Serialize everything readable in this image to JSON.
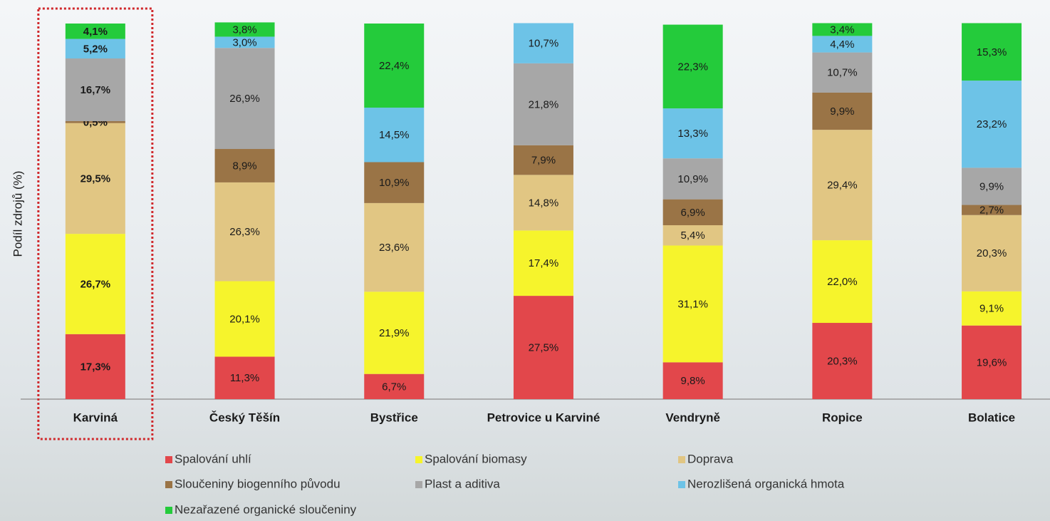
{
  "chart_data": {
    "type": "stacked_bar",
    "y_label": "Podíl zdrojů (%)",
    "categories": [
      "Karviná",
      "Český Těšín",
      "Bystřice",
      "Petrovice u Karviné",
      "Vendryně",
      "Ropice",
      "Bolatice"
    ],
    "ylim": [
      0,
      100
    ],
    "highlighted_category": 0,
    "series": [
      {
        "name": "Spalování uhlí",
        "color": "#e2474b",
        "values": [
          17.3,
          11.3,
          6.7,
          27.5,
          9.8,
          20.3,
          19.6
        ],
        "value_labels": [
          "17,3%",
          "11,3%",
          "6,7%",
          "27,5%",
          "9,8%",
          "20,3%",
          "19,6%"
        ]
      },
      {
        "name": "Spalování biomasy",
        "color": "#f6f42c",
        "values": [
          26.7,
          20.1,
          21.9,
          17.4,
          31.1,
          22.0,
          9.1
        ],
        "value_labels": [
          "26,7%",
          "20,1%",
          "21,9%",
          "17,4%",
          "31,1%",
          "22,0%",
          "9,1%"
        ]
      },
      {
        "name": "Doprava",
        "color": "#e1c683",
        "values": [
          29.5,
          26.3,
          23.6,
          14.8,
          5.4,
          29.4,
          20.3
        ],
        "value_labels": [
          "29,5%",
          "26,3%",
          "23,6%",
          "14,8%",
          "5,4%",
          "29,4%",
          "20,3%"
        ]
      },
      {
        "name": "Sloučeniny biogenního původu",
        "color": "#9a7446",
        "values": [
          0.5,
          8.9,
          10.9,
          7.9,
          6.9,
          9.9,
          2.7
        ],
        "value_labels": [
          "0,5%",
          "8,9%",
          "10,9%",
          "7,9%",
          "6,9%",
          "9,9%",
          "2,7%"
        ]
      },
      {
        "name": "Plast a aditiva",
        "color": "#a7a7a7",
        "values": [
          16.7,
          26.9,
          null,
          21.8,
          10.9,
          10.7,
          9.9
        ],
        "value_labels": [
          "16,7%",
          "26,9%",
          null,
          "21,8%",
          "10,9%",
          "10,7%",
          "9,9%"
        ]
      },
      {
        "name": "Nerozlišená organická hmota",
        "color": "#6dc3e7",
        "values": [
          5.2,
          3.0,
          14.5,
          10.7,
          13.3,
          4.4,
          23.2
        ],
        "value_labels": [
          "5,2%",
          "3,0%",
          "14,5%",
          "10,7%",
          "13,3%",
          "4,4%",
          "23,2%"
        ]
      },
      {
        "name": "Nezařazené organické sloučeniny",
        "color": "#24cb3b",
        "values": [
          4.1,
          3.8,
          22.4,
          null,
          22.3,
          3.4,
          15.3
        ],
        "value_labels": [
          "4,1%",
          "3,8%",
          "22,4%",
          null,
          "22,3%",
          "3,4%",
          "15,3%"
        ]
      }
    ]
  }
}
